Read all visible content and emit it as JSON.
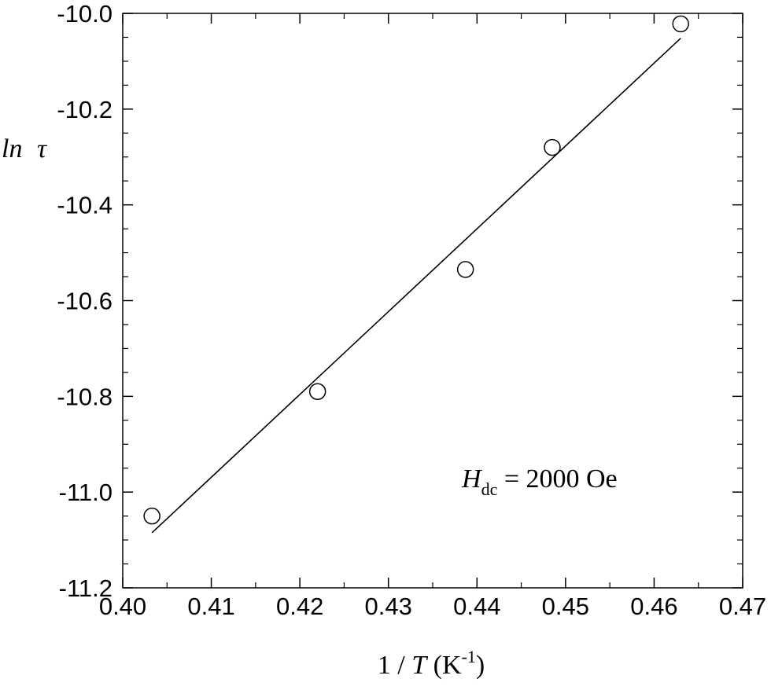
{
  "chart_data": {
    "type": "scatter",
    "ylabel": {
      "main": "ln",
      "symbol": "τ"
    },
    "xlabel": {
      "prefix": "1 / ",
      "var": "T",
      "unit_open": " (K",
      "unit_sup": "-1",
      "unit_close": ")"
    },
    "xlim": [
      0.4,
      0.47
    ],
    "ylim": [
      -11.2,
      -10.0
    ],
    "x_ticks": [
      "0.40",
      "0.41",
      "0.42",
      "0.43",
      "0.44",
      "0.45",
      "0.46",
      "0.47"
    ],
    "y_ticks": [
      "-10.0",
      "-10.2",
      "-10.4",
      "-10.6",
      "-10.8",
      "-11.0",
      "-11.2"
    ],
    "series": [
      {
        "marker": "open-circle",
        "x": [
          0.4033,
          0.422,
          0.4387,
          0.4485,
          0.463
        ],
        "y": [
          -11.05,
          -10.79,
          -10.535,
          -10.28,
          -10.022
        ]
      }
    ],
    "fit_line": {
      "x": [
        0.4033,
        0.463
      ],
      "y": [
        -11.085,
        -10.052
      ]
    },
    "annotation": {
      "var": "H",
      "sub": "dc",
      "rest": " = 2000 Oe"
    },
    "grid": false,
    "legend": "none"
  }
}
